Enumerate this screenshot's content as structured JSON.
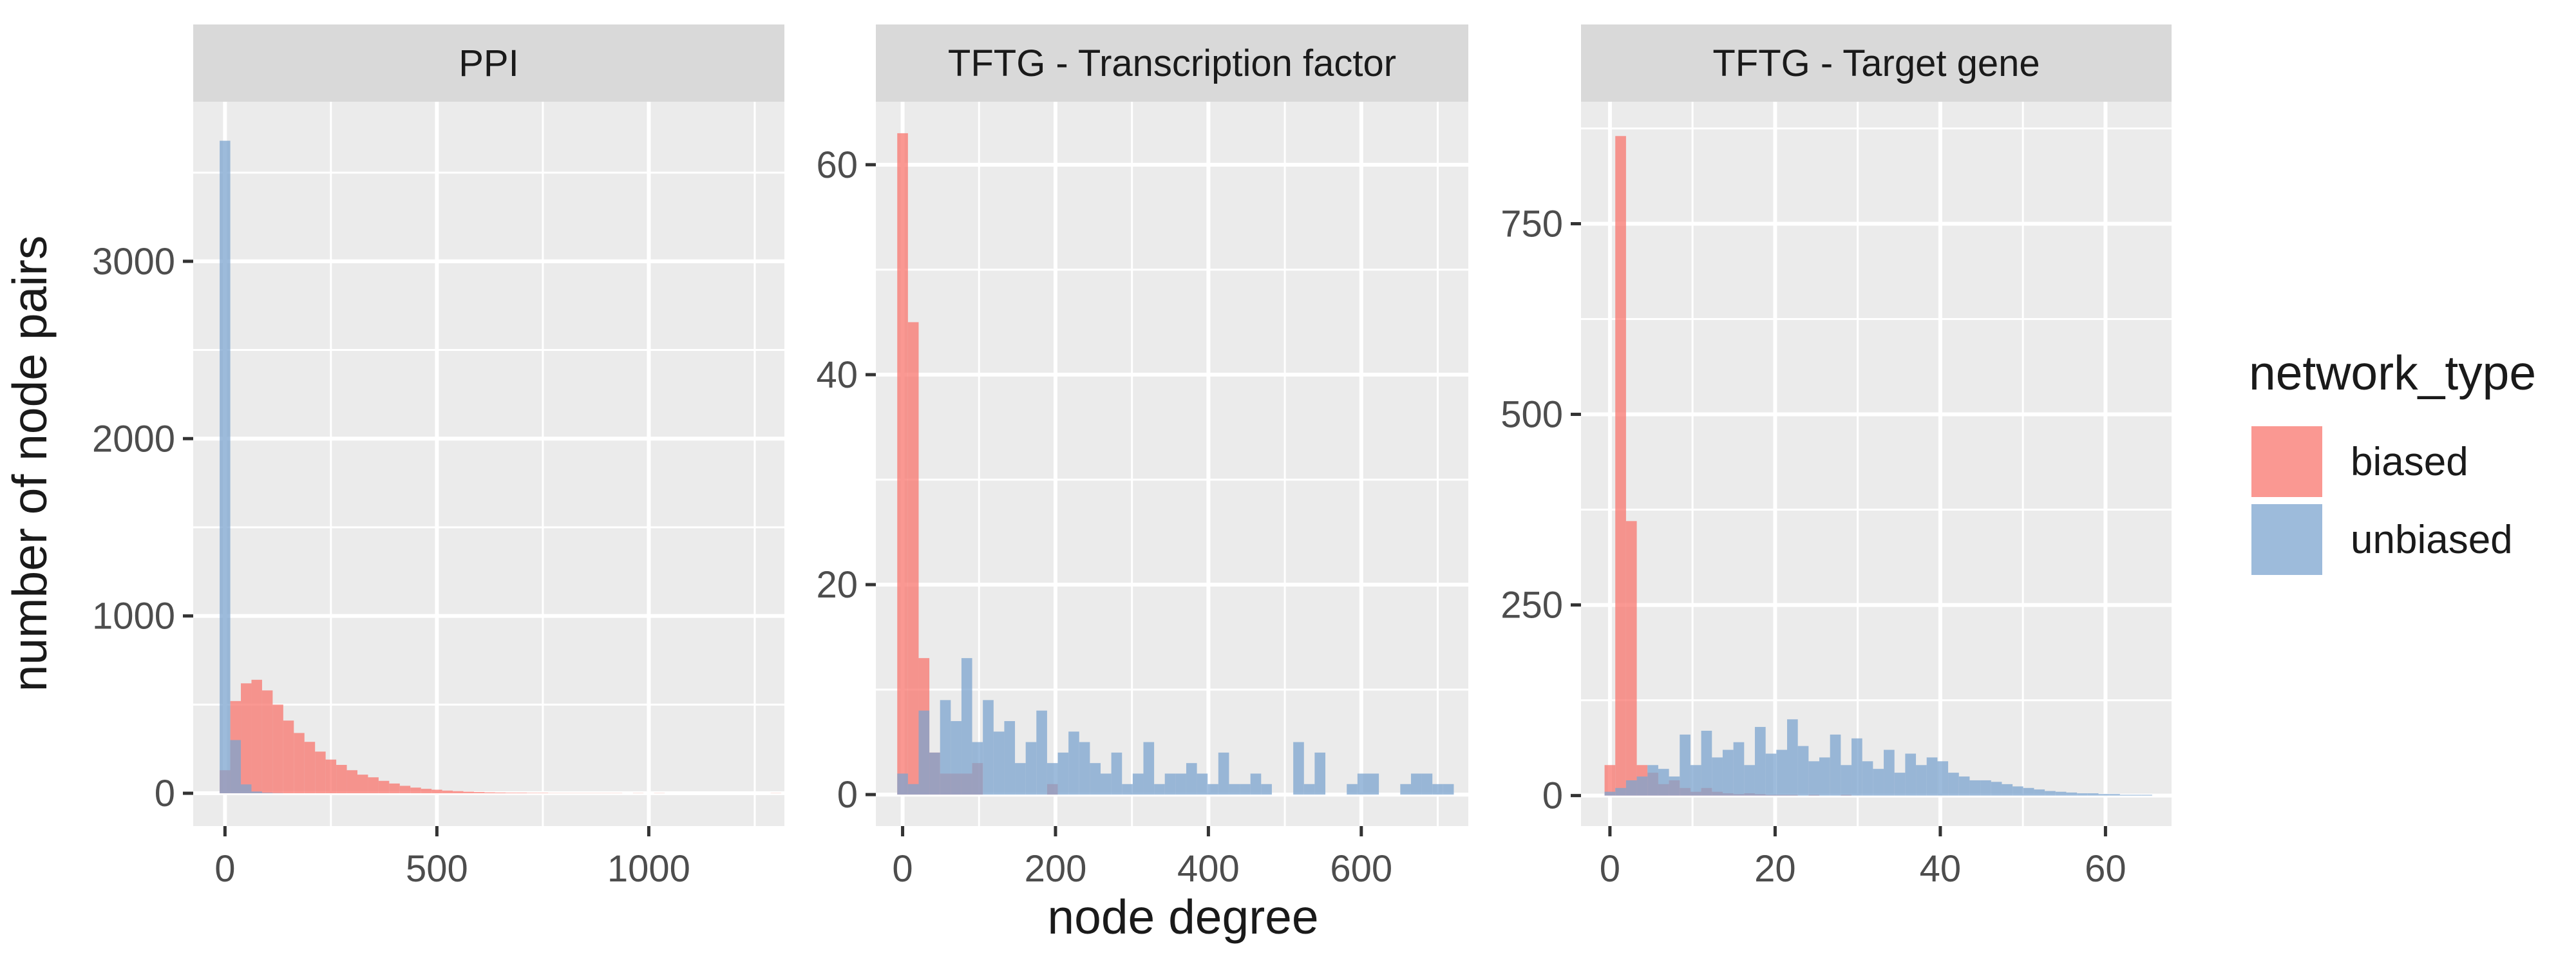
{
  "figure": {
    "ylabel": "number of node pairs",
    "xlabel": "node degree",
    "legend_title": "network_type",
    "legend_position": "right"
  },
  "legend": [
    {
      "key": "biased",
      "label": "biased",
      "color": "#F8766D"
    },
    {
      "key": "unbiased",
      "label": "unbiased",
      "color": "#7CA4CF"
    }
  ],
  "colors": {
    "panel_bg": "#EBEBEB",
    "strip_bg": "#D9D9D9",
    "grid": "#FFFFFF",
    "axis_text": "#4D4D4D",
    "title_text": "#1A1A1A",
    "biased": "#F8766D",
    "unbiased": "#7CA4CF",
    "bar_opacity": 0.75
  },
  "chart_data": [
    {
      "type": "bar",
      "title": "PPI",
      "grid": true,
      "xlim": [
        -75,
        1320
      ],
      "ylim": [
        -185,
        3900
      ],
      "xticks": [
        0,
        500,
        1000
      ],
      "xtick_labels": [
        "0",
        "500",
        "1000"
      ],
      "yticks": [
        0,
        1000,
        2000,
        3000
      ],
      "ytick_labels": [
        "0",
        "1000",
        "2000",
        "3000"
      ],
      "bin_width": 25,
      "bin_start": -12.5,
      "series": [
        {
          "name": "biased",
          "values": [
            130,
            520,
            620,
            640,
            580,
            500,
            410,
            340,
            290,
            235,
            190,
            160,
            130,
            105,
            90,
            70,
            55,
            42,
            32,
            25,
            20,
            15,
            12,
            9,
            7,
            5,
            4,
            3,
            3,
            2,
            2,
            1,
            1,
            1,
            1,
            1,
            1,
            1,
            0,
            1,
            0,
            1,
            0,
            0,
            0,
            0,
            0,
            0,
            0,
            0,
            0,
            0,
            1
          ]
        },
        {
          "name": "unbiased",
          "values": [
            3680,
            300,
            50,
            10,
            3,
            1
          ]
        }
      ]
    },
    {
      "type": "bar",
      "title": "TFTG - Transcription factor",
      "grid": true,
      "xlim": [
        -35,
        740
      ],
      "ylim": [
        -3,
        66
      ],
      "xticks": [
        0,
        200,
        400,
        600
      ],
      "xtick_labels": [
        "0",
        "200",
        "400",
        "600"
      ],
      "yticks": [
        0,
        20,
        40,
        60
      ],
      "ytick_labels": [
        "0",
        "20",
        "40",
        "60"
      ],
      "bin_width": 14,
      "bin_start": -7,
      "series": [
        {
          "name": "biased",
          "values": [
            63,
            45,
            13,
            4,
            2,
            2,
            2,
            3,
            0,
            0,
            0,
            0,
            0,
            0,
            1
          ]
        },
        {
          "name": "unbiased",
          "values": [
            2,
            1,
            8,
            4,
            9,
            7,
            13,
            5,
            9,
            6,
            7,
            3,
            5,
            8,
            3,
            4,
            6,
            5,
            3,
            2,
            4,
            1,
            2,
            5,
            1,
            2,
            2,
            3,
            2,
            1,
            4,
            1,
            1,
            2,
            1,
            0,
            0,
            5,
            1,
            4,
            0,
            0,
            1,
            2,
            2,
            0,
            0,
            1,
            2,
            2,
            1,
            1,
            0,
            0,
            1,
            1,
            0,
            0,
            0,
            0,
            1,
            0,
            0,
            0,
            0,
            1,
            0,
            0,
            0,
            0,
            0,
            0,
            0,
            1,
            0,
            0,
            0,
            0,
            1,
            0,
            0,
            0,
            0,
            0,
            0,
            0,
            1,
            1,
            0,
            0,
            0,
            0,
            0,
            0,
            1,
            0,
            0,
            1
          ]
        }
      ]
    },
    {
      "type": "bar",
      "title": "TFTG - Target gene",
      "grid": true,
      "xlim": [
        -3.5,
        68
      ],
      "ylim": [
        -40,
        910
      ],
      "xticks": [
        0,
        20,
        40,
        60
      ],
      "xtick_labels": [
        "0",
        "20",
        "40",
        "60"
      ],
      "yticks": [
        0,
        250,
        500,
        750
      ],
      "ytick_labels": [
        "0",
        "250",
        "500",
        "750"
      ],
      "bin_width": 1.3,
      "bin_start": -0.65,
      "series": [
        {
          "name": "biased",
          "values": [
            40,
            865,
            360,
            40,
            30,
            15,
            20,
            10,
            5,
            10,
            5,
            3,
            2,
            3,
            2,
            1,
            1,
            1,
            0,
            1,
            0,
            0,
            1
          ]
        },
        {
          "name": "unbiased",
          "values": [
            5,
            10,
            20,
            25,
            40,
            35,
            25,
            80,
            40,
            85,
            50,
            60,
            70,
            40,
            90,
            55,
            60,
            100,
            65,
            45,
            50,
            80,
            40,
            75,
            45,
            35,
            60,
            30,
            55,
            40,
            50,
            45,
            30,
            25,
            20,
            20,
            18,
            15,
            12,
            10,
            8,
            6,
            5,
            4,
            3,
            3,
            2,
            2,
            1,
            1,
            1,
            0,
            0,
            1
          ]
        }
      ]
    }
  ]
}
